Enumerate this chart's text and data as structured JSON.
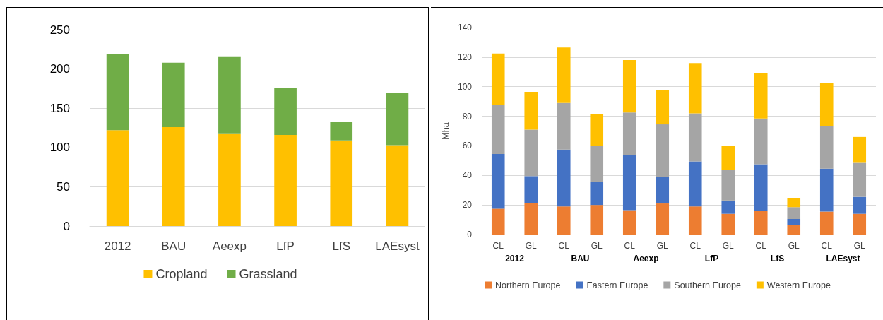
{
  "chart_data": [
    {
      "type": "bar",
      "stacked": true,
      "categories": [
        "2012",
        "BAU",
        "Aeexp",
        "LfP",
        "LfS",
        "LAEsyst"
      ],
      "series": [
        {
          "name": "Cropland",
          "color": "#ffc000",
          "values": [
            122,
            126,
            118,
            116,
            109,
            103
          ]
        },
        {
          "name": "Grassland",
          "color": "#70ad47",
          "values": [
            97,
            82,
            98,
            60,
            24,
            67
          ]
        }
      ],
      "ylim": [
        0,
        250
      ],
      "yticks": [
        0,
        50,
        100,
        150,
        200,
        250
      ],
      "grid": "y",
      "legend": "bottom"
    },
    {
      "type": "bar",
      "stacked": true,
      "ylabel": "Mha",
      "categories": [
        "CL",
        "GL",
        "CL",
        "GL",
        "CL",
        "GL",
        "CL",
        "GL",
        "CL",
        "GL",
        "CL",
        "GL"
      ],
      "annotations": [
        "2012",
        "BAU",
        "Aeexp",
        "LfP",
        "LfS",
        "LAEsyst"
      ],
      "series": [
        {
          "name": "Northern Europe",
          "color": "#ed7d31",
          "values": [
            17.5,
            21.5,
            19,
            20,
            16.5,
            21,
            19,
            14,
            16,
            6.5,
            15.5,
            14
          ]
        },
        {
          "name": "Eastern Europe",
          "color": "#4472c4",
          "values": [
            37,
            18,
            38.5,
            15.5,
            37.5,
            18,
            30.5,
            9,
            31.5,
            4,
            29,
            11.5
          ]
        },
        {
          "name": "Southern Europe",
          "color": "#a5a5a5",
          "values": [
            33,
            31.5,
            31.5,
            24.5,
            28.5,
            35.5,
            32.5,
            20.5,
            31,
            8,
            29,
            23
          ]
        },
        {
          "name": "Western Europe",
          "color": "#ffc000",
          "values": [
            35,
            25.5,
            37.5,
            21.5,
            35.5,
            23,
            34,
            16.5,
            30.5,
            6,
            29,
            17.5
          ]
        }
      ],
      "ylim": [
        0,
        140
      ],
      "yticks": [
        0,
        20,
        40,
        60,
        80,
        100,
        120,
        140
      ],
      "grid": "y",
      "legend": "bottom"
    }
  ]
}
